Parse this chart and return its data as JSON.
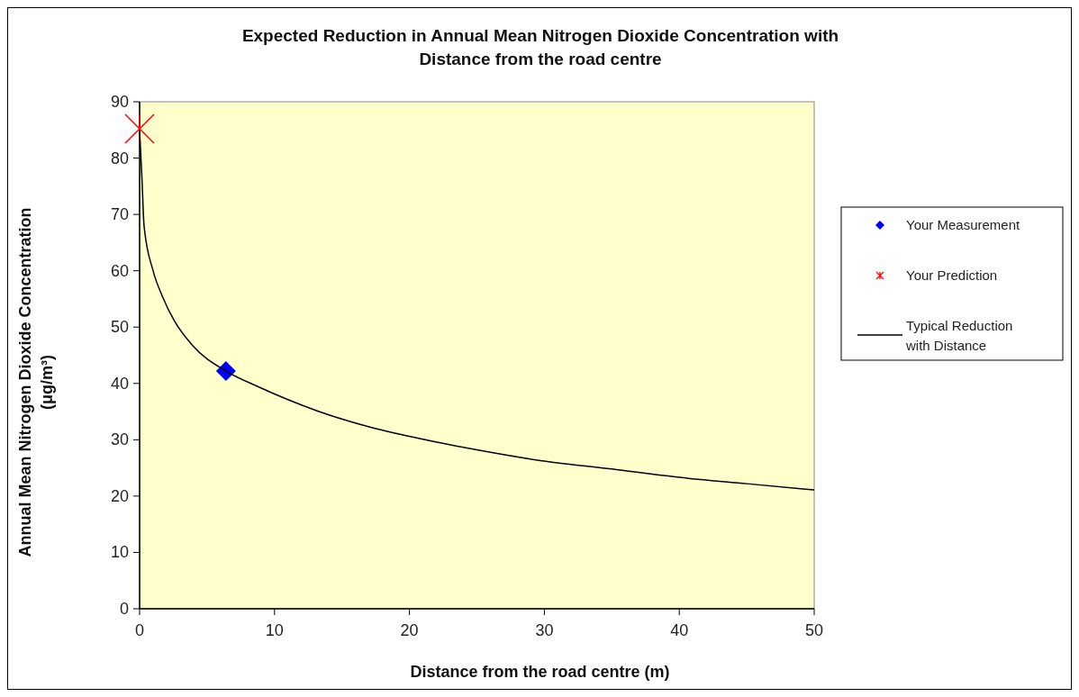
{
  "chart_data": {
    "type": "line",
    "title": "Expected Reduction in Annual Mean Nitrogen Dioxide Concentration with\nDistance from the road centre",
    "xlabel": "Distance from the road centre (m)",
    "ylabel": "Annual Mean Nitrogen Dioxide Concentration\n(μg/m³)",
    "xlim": [
      0,
      50
    ],
    "xticks": [
      0,
      10,
      20,
      30,
      40,
      50
    ],
    "ylim": [
      0,
      90
    ],
    "yticks": [
      0,
      10,
      20,
      30,
      40,
      50,
      60,
      70,
      80,
      90
    ],
    "grid": false,
    "legend": "right",
    "series": [
      {
        "name": "Your Measurement",
        "type": "scatter",
        "marker": "diamond",
        "color": "#0000ff",
        "x": [
          6.4
        ],
        "values": [
          42.2
        ]
      },
      {
        "name": "Your Prediction",
        "type": "scatter",
        "marker": "cross",
        "color": "#ff0000",
        "x": [
          0
        ],
        "values": [
          85.2
        ]
      },
      {
        "name": "Typical Reduction\nwith Distance",
        "type": "line",
        "marker": "none",
        "line_style": "solid",
        "color": "#000000",
        "x": [
          0,
          0.18,
          0.33,
          1,
          1.7,
          2.6,
          3.9,
          6.4,
          8.8,
          13.2,
          16.4,
          20,
          25,
          29.7,
          35,
          39.7,
          45,
          50
        ],
        "values": [
          85,
          76,
          68,
          60,
          55.4,
          51,
          46.8,
          42.2,
          39.4,
          35.1,
          32.7,
          30.6,
          28.2,
          26.3,
          24.8,
          23.4,
          22.2,
          21.1
        ]
      }
    ]
  }
}
